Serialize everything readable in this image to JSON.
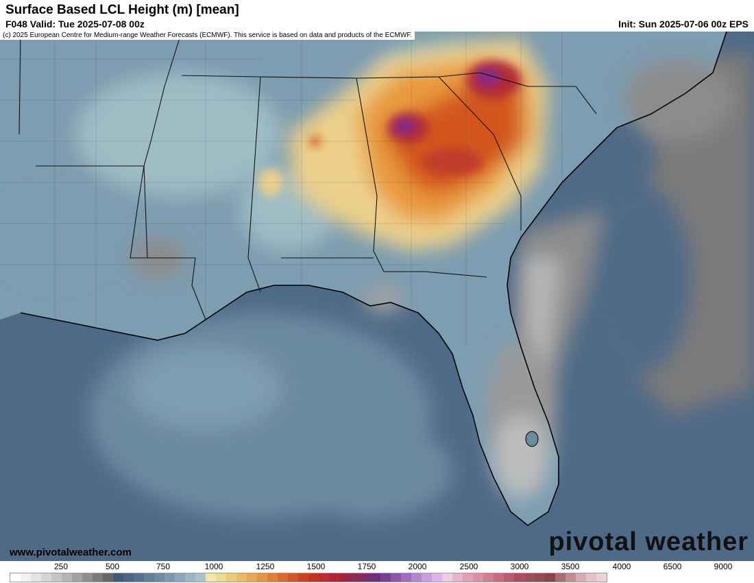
{
  "header": {
    "title": "Surface Based LCL Height (m) [mean]",
    "valid": "F048 Valid: Tue 2025-07-08 00z",
    "init": "Init: Sun 2025-07-06 00z EPS"
  },
  "map": {
    "copyright": "(c) 2025 European Centre for Medium-range Weather Forecasts (ECMWF). This service is based on data and products of the ECMWF.",
    "site": "www.pivotalweather.com",
    "brand": "pivotal weather",
    "colors": {
      "ocean_low": "#4f6a86",
      "ocean_mid": "#6a8aa0",
      "land_low": "#7d9db0",
      "land_mid": "#9fbcc4",
      "pale_yellow": "#ecd08a",
      "orange": "#e89a3e",
      "red_orange": "#d2561e",
      "dark_red": "#b02a38",
      "purple": "#7a2b8c",
      "gray_high": "#8c8c8c",
      "gray_light": "#bdbdbd"
    }
  },
  "legend": {
    "labels": [
      "250",
      "500",
      "750",
      "1000",
      "1250",
      "1500",
      "1750",
      "2000",
      "2500",
      "3000",
      "3500",
      "4000",
      "6500",
      "9000"
    ],
    "colors": [
      "#ffffff",
      "#f2f2f2",
      "#e4e4e4",
      "#d6d6d6",
      "#c6c6c6",
      "#b4b4b4",
      "#a2a2a2",
      "#8f8f8f",
      "#7b7b7b",
      "#666666",
      "#3f5a78",
      "#4a6585",
      "#557190",
      "#627e9b",
      "#6e8ba6",
      "#7d99b0",
      "#8ba7ba",
      "#9ab5c4",
      "#a8c2cc",
      "#f2e6a8",
      "#efd98e",
      "#ebcb77",
      "#e8bb62",
      "#e6a950",
      "#e49642",
      "#e08236",
      "#db6c2c",
      "#d45526",
      "#cf4123",
      "#c83424",
      "#bf2a2f",
      "#b22438",
      "#a12341",
      "#8f2a52",
      "#7d2d66",
      "#702f7d",
      "#7c3e93",
      "#8f55a8",
      "#a36dbd",
      "#b884cf",
      "#cc9bdf",
      "#e0b3ea",
      "#f0cce3",
      "#eab3c8",
      "#e3a1b6",
      "#db8fa4",
      "#d27d92",
      "#c86c81",
      "#bd5b70",
      "#b14d62",
      "#a04f5a",
      "#954a52",
      "#8a454b",
      "#a86c72",
      "#bf8d92",
      "#d4aeb2",
      "#e2c3c6",
      "#ecd3d5"
    ]
  }
}
